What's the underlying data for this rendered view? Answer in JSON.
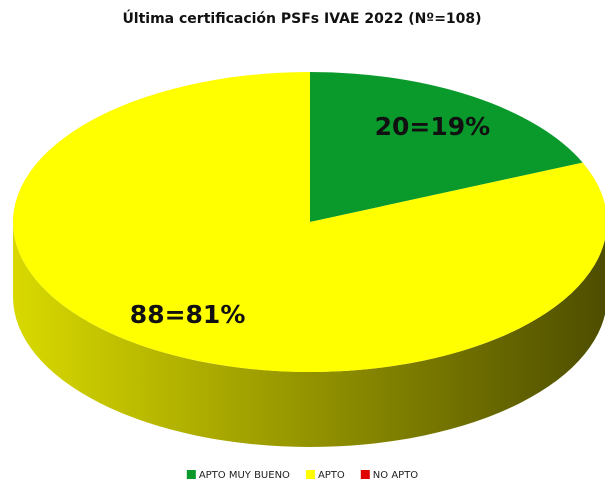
{
  "chart_data": {
    "type": "pie",
    "title": "Última certificación PSFs IVAE 2022 (Nº=108)",
    "categories": [
      "APTO MUY BUENO",
      "APTO",
      "NO APTO"
    ],
    "values": [
      20,
      88,
      0
    ],
    "value_labels": [
      "20=19%",
      "88=81%",
      null
    ],
    "colors": [
      "#0a9a2c",
      "#ffff00",
      "#e00000"
    ],
    "legend": "bottom"
  }
}
